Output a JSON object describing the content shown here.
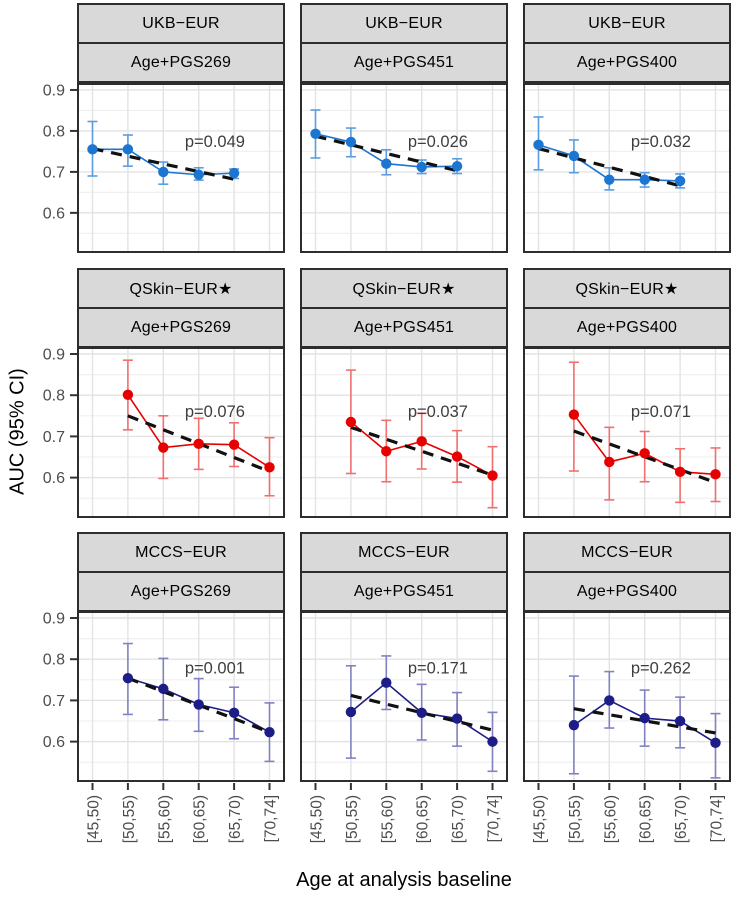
{
  "figure": {
    "y_title": "AUC (95% CI)",
    "x_title": "Age at analysis baseline"
  },
  "chart_data": {
    "type": "line",
    "description": "3x3 faceted plot of AUC (95% CI) by age group; rows = cohorts, columns = models; points with 95% CI error bars, solid series line and dashed linear trend with p-value annotation per panel",
    "facet_rows": [
      "UKB−EUR",
      "QSkin−EUR★",
      "MCCS−EUR"
    ],
    "facet_cols": [
      "Age+PGS269",
      "Age+PGS451",
      "Age+PGS400"
    ],
    "x_categories": [
      "[45,50)",
      "[50,55)",
      "[55,60)",
      "[60,65)",
      "[65,70)",
      "[70,74]"
    ],
    "xlabel": "Age at analysis baseline",
    "ylabel": "AUC (95% CI)",
    "ylim": [
      0.502,
      0.917
    ],
    "y_ticks": [
      0.9,
      0.8,
      0.7,
      0.6
    ],
    "y_tick_labels": [
      "0.9",
      "0.8",
      "0.7",
      "0.6"
    ],
    "y_minor_gridlines": [
      0.55,
      0.65,
      0.75,
      0.85
    ],
    "grid": "major and minor horizontal, major vertical, light grey on white",
    "legend": "none",
    "panels": [
      {
        "row": 0,
        "col": 0,
        "cohort": "UKB−EUR",
        "model": "Age+PGS269",
        "p_label": "p=0.049",
        "p_y": 0.775,
        "color": "#1b75d1",
        "ci_color": "#5a9de0",
        "x": [
          0,
          1,
          2,
          3,
          4
        ],
        "y": [
          0.755,
          0.755,
          0.7,
          0.693,
          0.697
        ],
        "lo": [
          0.69,
          0.714,
          0.67,
          0.68,
          0.684
        ],
        "hi": [
          0.823,
          0.79,
          0.724,
          0.71,
          0.707
        ],
        "trend": {
          "x1": 0,
          "y1": 0.757,
          "x2": 4,
          "y2": 0.682
        }
      },
      {
        "row": 0,
        "col": 1,
        "cohort": "UKB−EUR",
        "model": "Age+PGS451",
        "p_label": "p=0.026",
        "p_y": 0.775,
        "color": "#1b75d1",
        "ci_color": "#5a9de0",
        "x": [
          0,
          1,
          2,
          3,
          4
        ],
        "y": [
          0.793,
          0.773,
          0.72,
          0.712,
          0.714
        ],
        "lo": [
          0.734,
          0.737,
          0.693,
          0.696,
          0.696
        ],
        "hi": [
          0.851,
          0.807,
          0.754,
          0.729,
          0.732
        ],
        "trend": {
          "x1": 0,
          "y1": 0.787,
          "x2": 4,
          "y2": 0.703
        }
      },
      {
        "row": 0,
        "col": 2,
        "cohort": "UKB−EUR",
        "model": "Age+PGS400",
        "p_label": "p=0.032",
        "p_y": 0.775,
        "color": "#1b75d1",
        "ci_color": "#5a9de0",
        "x": [
          0,
          1,
          2,
          3,
          4
        ],
        "y": [
          0.766,
          0.739,
          0.681,
          0.681,
          0.678
        ],
        "lo": [
          0.705,
          0.698,
          0.656,
          0.663,
          0.661
        ],
        "hi": [
          0.834,
          0.778,
          0.71,
          0.698,
          0.695
        ],
        "trend": {
          "x1": 0,
          "y1": 0.757,
          "x2": 4,
          "y2": 0.666
        }
      },
      {
        "row": 1,
        "col": 0,
        "cohort": "QSkin−EUR★",
        "model": "Age+PGS269",
        "p_label": "p=0.076",
        "p_y": 0.762,
        "color": "#e60000",
        "ci_color": "#f07070",
        "x": [
          1,
          2,
          3,
          4,
          5
        ],
        "y": [
          0.801,
          0.673,
          0.682,
          0.68,
          0.625
        ],
        "lo": [
          0.716,
          0.598,
          0.62,
          0.627,
          0.556
        ],
        "hi": [
          0.885,
          0.75,
          0.744,
          0.733,
          0.697
        ],
        "trend": {
          "x1": 1,
          "y1": 0.75,
          "x2": 5,
          "y2": 0.615
        }
      },
      {
        "row": 1,
        "col": 1,
        "cohort": "QSkin−EUR★",
        "model": "Age+PGS451",
        "p_label": "p=0.037",
        "p_y": 0.762,
        "color": "#e60000",
        "ci_color": "#f07070",
        "x": [
          1,
          2,
          3,
          4,
          5
        ],
        "y": [
          0.735,
          0.664,
          0.688,
          0.651,
          0.605
        ],
        "lo": [
          0.61,
          0.59,
          0.621,
          0.589,
          0.527
        ],
        "hi": [
          0.861,
          0.739,
          0.756,
          0.714,
          0.675
        ],
        "trend": {
          "x1": 1,
          "y1": 0.722,
          "x2": 5,
          "y2": 0.606
        }
      },
      {
        "row": 1,
        "col": 2,
        "cohort": "QSkin−EUR★",
        "model": "Age+PGS400",
        "p_label": "p=0.071",
        "p_y": 0.762,
        "color": "#e60000",
        "ci_color": "#f07070",
        "x": [
          1,
          2,
          3,
          4,
          5
        ],
        "y": [
          0.753,
          0.638,
          0.659,
          0.614,
          0.608
        ],
        "lo": [
          0.616,
          0.546,
          0.59,
          0.54,
          0.542
        ],
        "hi": [
          0.88,
          0.722,
          0.712,
          0.67,
          0.672
        ],
        "trend": {
          "x1": 1,
          "y1": 0.713,
          "x2": 5,
          "y2": 0.588
        }
      },
      {
        "row": 2,
        "col": 0,
        "cohort": "MCCS−EUR",
        "model": "Age+PGS269",
        "p_label": "p=0.001",
        "p_y": 0.78,
        "color": "#1d1d87",
        "ci_color": "#8282c2",
        "x": [
          1,
          2,
          3,
          4,
          5
        ],
        "y": [
          0.754,
          0.728,
          0.69,
          0.67,
          0.623
        ],
        "lo": [
          0.666,
          0.653,
          0.625,
          0.607,
          0.552
        ],
        "hi": [
          0.838,
          0.802,
          0.753,
          0.732,
          0.694
        ],
        "trend": {
          "x1": 1,
          "y1": 0.754,
          "x2": 5,
          "y2": 0.623
        }
      },
      {
        "row": 2,
        "col": 1,
        "cohort": "MCCS−EUR",
        "model": "Age+PGS451",
        "p_label": "p=0.171",
        "p_y": 0.78,
        "color": "#1d1d87",
        "ci_color": "#8282c2",
        "x": [
          1,
          2,
          3,
          4,
          5
        ],
        "y": [
          0.672,
          0.743,
          0.67,
          0.656,
          0.6
        ],
        "lo": [
          0.56,
          0.678,
          0.604,
          0.589,
          0.528
        ],
        "hi": [
          0.784,
          0.808,
          0.739,
          0.719,
          0.671
        ],
        "trend": {
          "x1": 1,
          "y1": 0.712,
          "x2": 5,
          "y2": 0.628
        }
      },
      {
        "row": 2,
        "col": 2,
        "cohort": "MCCS−EUR",
        "model": "Age+PGS400",
        "p_label": "p=0.262",
        "p_y": 0.78,
        "color": "#1d1d87",
        "ci_color": "#8282c2",
        "x": [
          1,
          2,
          3,
          4,
          5
        ],
        "y": [
          0.64,
          0.7,
          0.657,
          0.65,
          0.597
        ],
        "lo": [
          0.522,
          0.633,
          0.589,
          0.585,
          0.512
        ],
        "hi": [
          0.759,
          0.77,
          0.725,
          0.708,
          0.668
        ],
        "trend": {
          "x1": 1,
          "y1": 0.68,
          "x2": 5,
          "y2": 0.621
        }
      }
    ]
  },
  "colors": {
    "strip_background": "#d9d9d9",
    "panel_border": "#2d2d2d",
    "grid_major": "#e3e3e3",
    "grid_minor": "#f0f0f0",
    "trend_line": "#111111",
    "p_label_text": "#3e3e3e",
    "tick_label_text": "#4d4d4d",
    "ukb_series": "#1b75d1",
    "qskin_series": "#e60000",
    "mccs_series": "#1d1d87"
  }
}
